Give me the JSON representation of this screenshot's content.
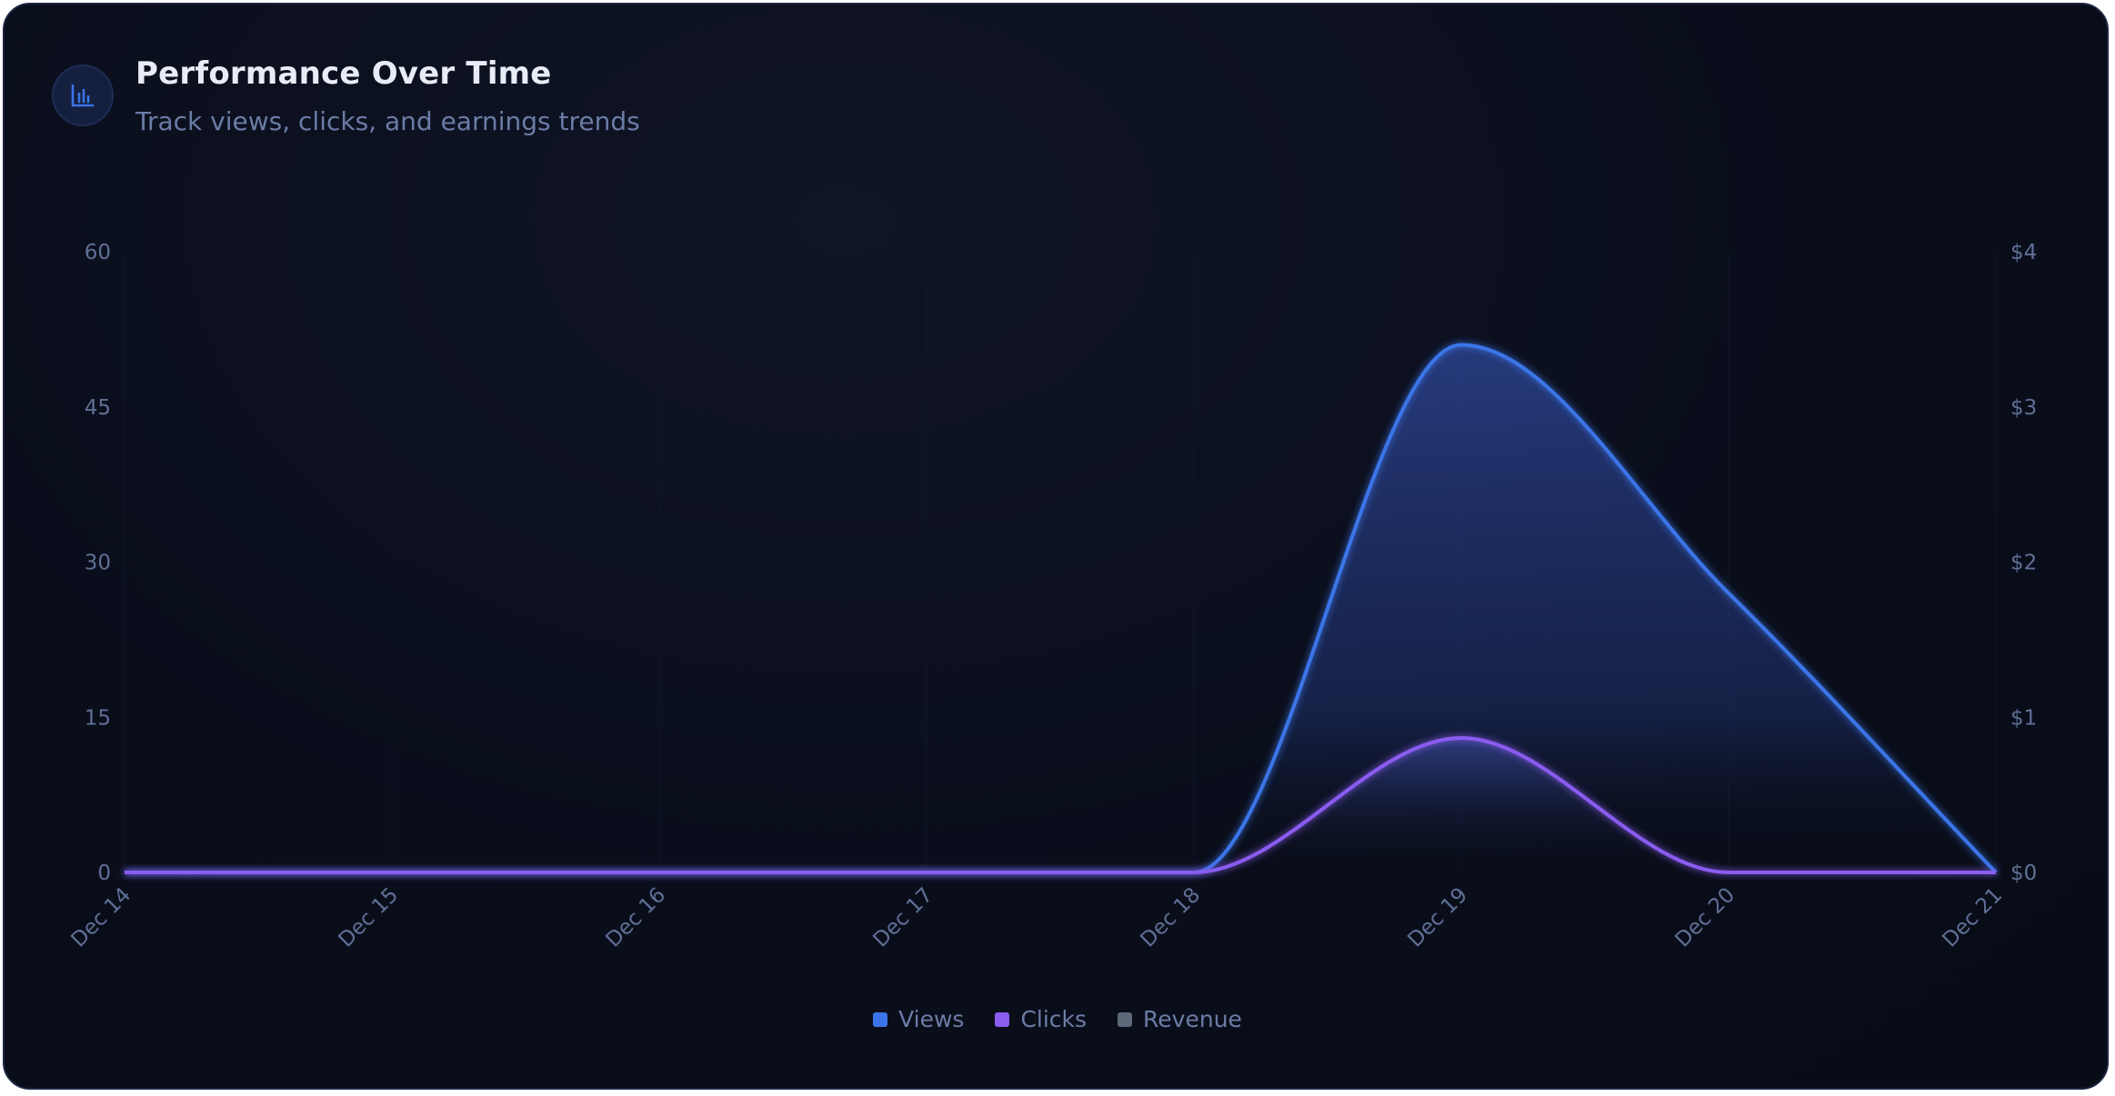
{
  "header": {
    "title": "Performance Over Time",
    "subtitle": "Track views, clicks, and earnings trends",
    "icon": "bar-chart-icon"
  },
  "colors": {
    "views": "#3b74e8",
    "clicks": "#8a5cf0",
    "revenue": "#5d6878",
    "ticks": "#5f7096"
  },
  "chart_data": {
    "type": "area",
    "x": [
      "Dec 14",
      "Dec 15",
      "Dec 16",
      "Dec 17",
      "Dec 18",
      "Dec 19",
      "Dec 20",
      "Dec 21"
    ],
    "series": [
      {
        "name": "Views",
        "axis": "left",
        "values": [
          0,
          0,
          0,
          0,
          0,
          51,
          27,
          0
        ]
      },
      {
        "name": "Clicks",
        "axis": "left",
        "values": [
          0,
          0,
          0,
          0,
          0,
          13,
          0,
          0
        ]
      },
      {
        "name": "Revenue",
        "axis": "right",
        "values": [
          0,
          0,
          0,
          0,
          0,
          0,
          0,
          0
        ]
      }
    ],
    "y_left": {
      "ticks": [
        "0",
        "15",
        "30",
        "45",
        "60"
      ],
      "range": [
        0,
        60
      ]
    },
    "y_right": {
      "ticks": [
        "$0",
        "$1",
        "$2",
        "$3",
        "$4"
      ],
      "range": [
        0,
        4
      ]
    },
    "grid": true,
    "legend_position": "bottom"
  }
}
